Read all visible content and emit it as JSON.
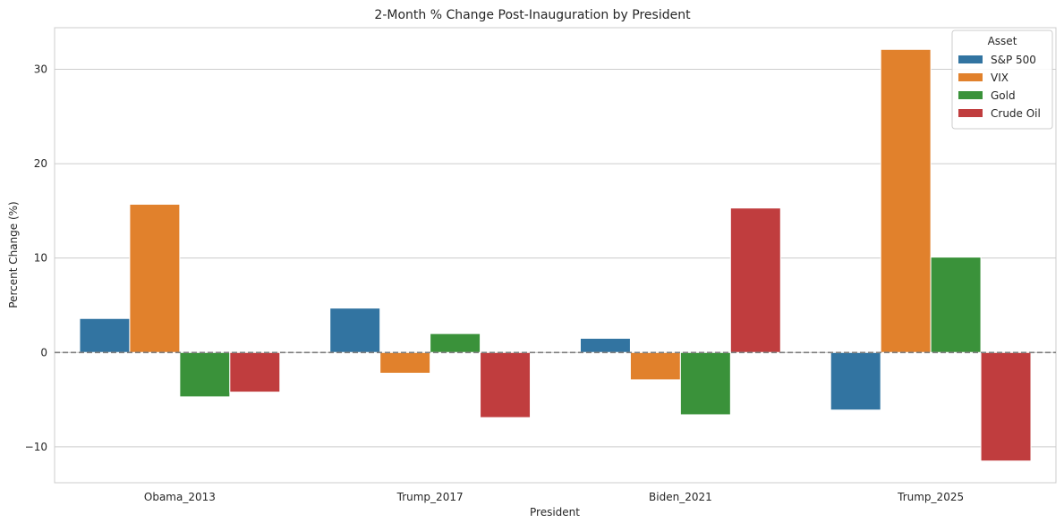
{
  "chart_data": {
    "type": "bar",
    "title": "2-Month % Change Post-Inauguration by President",
    "xlabel": "President",
    "ylabel": "Percent Change (%)",
    "categories": [
      "Obama_2013",
      "Trump_2017",
      "Biden_2021",
      "Trump_2025"
    ],
    "series": [
      {
        "name": "S&P 500",
        "color": "#3274a1",
        "values": [
          3.6,
          4.7,
          1.5,
          -6.1
        ]
      },
      {
        "name": "VIX",
        "color": "#e1812c",
        "values": [
          15.7,
          -2.2,
          -2.9,
          32.1
        ]
      },
      {
        "name": "Gold",
        "color": "#3a923a",
        "values": [
          -4.7,
          2.0,
          -6.6,
          10.1
        ]
      },
      {
        "name": "Crude Oil",
        "color": "#c03d3e",
        "values": [
          -4.2,
          -6.9,
          15.3,
          -11.5
        ]
      }
    ],
    "ylim": [
      -13.8,
      34.4
    ],
    "yticks": [
      -10,
      0,
      10,
      20,
      30
    ],
    "ytick_labels": [
      "−10",
      "0",
      "10",
      "20",
      "30"
    ],
    "grid": "horizontal",
    "zero_line": {
      "value": 0,
      "style": "dashed",
      "color": "#808080"
    },
    "legend": {
      "title": "Asset",
      "placement": "top-right"
    }
  }
}
